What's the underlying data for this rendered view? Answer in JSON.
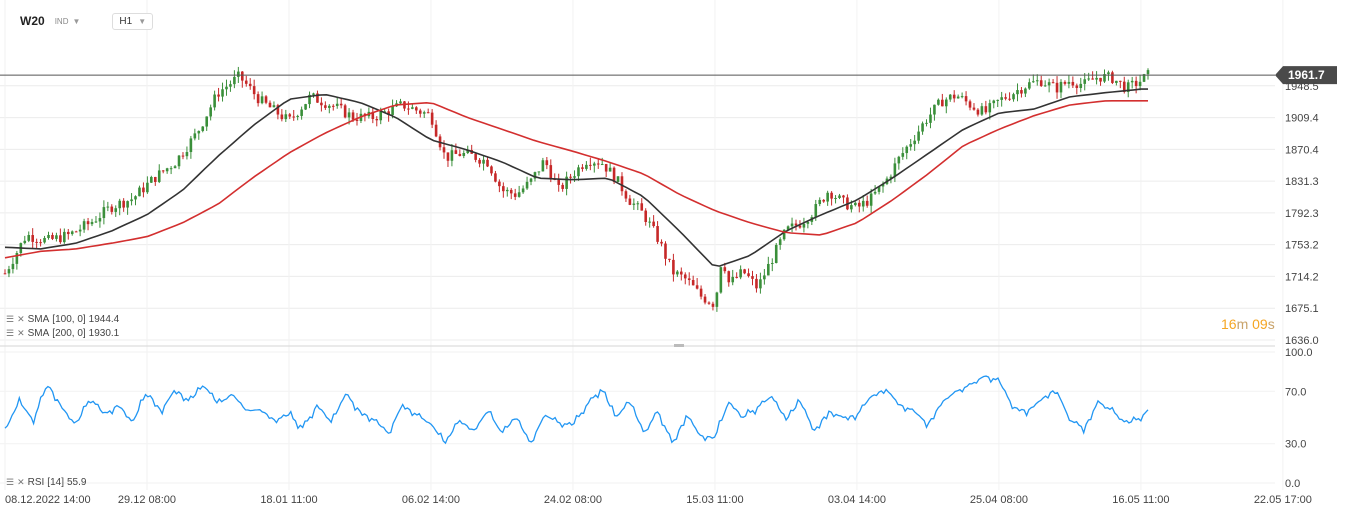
{
  "header": {
    "symbol": "W20",
    "exchange": "IND",
    "timeframe": "H1"
  },
  "indicators": {
    "sma100": {
      "label": "SMA",
      "params": "[100,  0]",
      "value": "1944.4",
      "color": "#333333"
    },
    "sma200": {
      "label": "SMA",
      "params": "[200,  0]",
      "value": "1930.1",
      "color": "#d32f2f"
    },
    "rsi": {
      "label": "RSI",
      "params": "[14]",
      "value": "55.9",
      "color": "#2196f3"
    }
  },
  "timer": {
    "minutes": "16",
    "m_unit": "m",
    "seconds": "09",
    "s_unit": "s"
  },
  "colors": {
    "up": "#3a8f3a",
    "down": "#c62828",
    "grid": "#ececec",
    "price_tag": "#4a4a4a"
  },
  "chart_data": [
    {
      "type": "candlestick",
      "instrument": "W20",
      "timeframe": "H1",
      "last_price": 1961.7,
      "ylim": [
        1636.0,
        1987.6
      ],
      "y_ticks": [
        1948.5,
        1909.4,
        1870.4,
        1831.3,
        1792.3,
        1753.2,
        1714.2,
        1675.1,
        1636.0
      ],
      "x_ticks": [
        "08.12.2022  14:00",
        "29.12  08:00",
        "18.01  11:00",
        "06.02  14:00",
        "24.02  08:00",
        "15.03  11:00",
        "03.04  14:00",
        "25.04  08:00",
        "16.05  11:00",
        "22.05  17:00"
      ],
      "x_tick_index": [
        0,
        20,
        40,
        60,
        80,
        100,
        120,
        140,
        160,
        180
      ],
      "close_path": {
        "x": [
          0,
          3,
          6,
          9,
          12,
          15,
          18,
          21,
          24,
          27,
          30,
          33,
          36,
          40,
          43,
          46,
          49,
          52,
          56,
          60,
          62,
          64,
          66,
          68,
          70,
          72,
          74,
          76,
          78,
          80,
          82,
          84,
          86,
          88,
          90,
          92,
          94,
          96,
          98,
          100,
          101,
          102,
          104,
          106,
          108,
          110,
          112,
          114,
          116,
          118,
          120,
          122,
          124,
          126,
          128,
          130,
          132,
          134,
          136,
          138,
          140,
          142,
          144,
          146,
          148,
          150,
          152,
          154,
          156,
          158,
          160,
          161
        ],
        "y": [
          1718,
          1765,
          1758,
          1765,
          1780,
          1800,
          1810,
          1835,
          1855,
          1890,
          1940,
          1960,
          1930,
          1905,
          1935,
          1925,
          1910,
          1910,
          1925,
          1912,
          1860,
          1865,
          1862,
          1855,
          1820,
          1815,
          1830,
          1857,
          1820,
          1840,
          1858,
          1855,
          1835,
          1808,
          1790,
          1760,
          1720,
          1710,
          1690,
          1680,
          1740,
          1705,
          1720,
          1700,
          1735,
          1770,
          1780,
          1795,
          1820,
          1805,
          1798,
          1810,
          1830,
          1860,
          1885,
          1910,
          1930,
          1937,
          1925,
          1915,
          1930,
          1940,
          1950,
          1955,
          1945,
          1955,
          1950,
          1960,
          1958,
          1945,
          1955,
          1961.7
        ]
      },
      "sma100": {
        "x": [
          0,
          5,
          10,
          15,
          20,
          25,
          30,
          35,
          40,
          45,
          50,
          55,
          60,
          65,
          70,
          75,
          80,
          85,
          90,
          95,
          100,
          105,
          110,
          115,
          120,
          125,
          130,
          135,
          140,
          145,
          150,
          155,
          160,
          161
        ],
        "y": [
          1750,
          1748,
          1755,
          1770,
          1790,
          1820,
          1862,
          1900,
          1932,
          1938,
          1928,
          1910,
          1882,
          1870,
          1855,
          1835,
          1833,
          1835,
          1812,
          1770,
          1725,
          1740,
          1770,
          1790,
          1808,
          1835,
          1865,
          1895,
          1915,
          1920,
          1935,
          1940,
          1944.4,
          1944.4
        ]
      },
      "sma200": {
        "x": [
          0,
          5,
          10,
          15,
          20,
          25,
          30,
          35,
          40,
          45,
          50,
          55,
          60,
          65,
          70,
          75,
          80,
          85,
          90,
          95,
          100,
          105,
          110,
          115,
          120,
          125,
          130,
          135,
          140,
          145,
          150,
          155,
          160,
          161
        ],
        "y": [
          1737,
          1745,
          1748,
          1755,
          1763,
          1780,
          1803,
          1836,
          1866,
          1890,
          1910,
          1925,
          1928,
          1910,
          1895,
          1880,
          1868,
          1855,
          1840,
          1815,
          1795,
          1780,
          1768,
          1765,
          1780,
          1808,
          1840,
          1875,
          1895,
          1912,
          1925,
          1930,
          1930.1,
          1930.1
        ]
      }
    },
    {
      "type": "line",
      "series_label": "RSI [14]",
      "ylim": [
        0,
        100
      ],
      "y_ticks": [
        100.0,
        70.0,
        30.0,
        0.0
      ],
      "last_value": 55.9,
      "x": [
        0,
        2,
        4,
        6,
        8,
        10,
        12,
        14,
        16,
        18,
        20,
        22,
        24,
        26,
        28,
        30,
        32,
        34,
        36,
        38,
        40,
        42,
        44,
        46,
        48,
        50,
        52,
        54,
        56,
        58,
        60,
        62,
        64,
        66,
        68,
        70,
        72,
        74,
        76,
        78,
        80,
        82,
        84,
        86,
        88,
        90,
        92,
        94,
        96,
        98,
        100,
        102,
        104,
        106,
        108,
        110,
        112,
        114,
        116,
        118,
        120,
        122,
        124,
        126,
        128,
        130,
        132,
        134,
        136,
        138,
        140,
        142,
        144,
        146,
        148,
        150,
        152,
        154,
        156,
        158,
        160,
        161
      ],
      "y": [
        40,
        62,
        48,
        76,
        58,
        44,
        65,
        52,
        60,
        46,
        70,
        55,
        72,
        62,
        75,
        60,
        68,
        55,
        56,
        48,
        52,
        42,
        60,
        46,
        68,
        55,
        48,
        38,
        60,
        52,
        45,
        30,
        48,
        40,
        55,
        38,
        50,
        30,
        52,
        46,
        44,
        60,
        72,
        50,
        62,
        38,
        55,
        30,
        52,
        36,
        35,
        62,
        50,
        58,
        66,
        48,
        62,
        40,
        55,
        50,
        52,
        66,
        72,
        60,
        55,
        45,
        62,
        70,
        75,
        82,
        78,
        58,
        55,
        64,
        72,
        48,
        42,
        62,
        55,
        45,
        50,
        55.9
      ]
    }
  ]
}
